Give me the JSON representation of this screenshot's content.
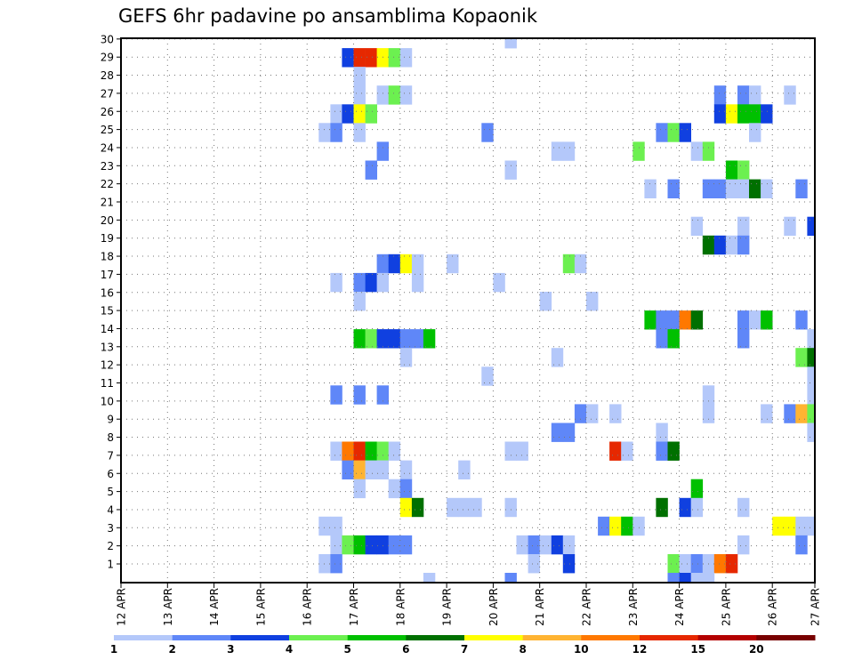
{
  "chart_data": {
    "type": "heatmap",
    "title": "GEFS 6hr padavine po ansamblima Kopaonik",
    "xlabel": "",
    "ylabel": "",
    "x_tick_labels": [
      "12 APR",
      "13 APR",
      "14 APR",
      "15 APR",
      "16 APR",
      "17 APR",
      "18 APR",
      "19 APR",
      "20 APR",
      "21 APR",
      "22 APR",
      "23 APR",
      "24 APR",
      "25 APR",
      "26 APR",
      "27 APR"
    ],
    "x_steps_per_day": 4,
    "x_total_steps": 60,
    "y_tick_labels": [
      "1",
      "2",
      "3",
      "4",
      "5",
      "6",
      "7",
      "8",
      "9",
      "10",
      "11",
      "12",
      "13",
      "14",
      "15",
      "16",
      "17",
      "18",
      "19",
      "20",
      "21",
      "22",
      "23",
      "24",
      "25",
      "26",
      "27",
      "28",
      "29",
      "30"
    ],
    "rows": 30,
    "grid": true,
    "colorbar": {
      "position": "bottom",
      "labels": [
        "1",
        "2",
        "3",
        "4",
        "5",
        "6",
        "7",
        "8",
        "10",
        "12",
        "15",
        "20"
      ],
      "bins": [
        1,
        2,
        3,
        4,
        5,
        6,
        7,
        8,
        10,
        12,
        15,
        20
      ],
      "colors": [
        "#b4c8fa",
        "#5f87f8",
        "#1040e0",
        "#6cf050",
        "#00c000",
        "#007000",
        "#ffff00",
        "#ffb432",
        "#ff7800",
        "#e62800",
        "#b40000",
        "#780000"
      ]
    },
    "cell_format": "[time_step_from_12APR00, row_from_top, precip_bin_lower_bound]",
    "cells": [
      [
        33,
        0,
        1
      ],
      [
        19,
        1,
        3
      ],
      [
        20,
        1,
        12
      ],
      [
        21,
        1,
        12
      ],
      [
        22,
        1,
        7
      ],
      [
        23,
        1,
        4
      ],
      [
        24,
        1,
        1
      ],
      [
        20,
        2,
        1
      ],
      [
        20,
        3,
        1
      ],
      [
        22,
        3,
        1
      ],
      [
        23,
        3,
        4
      ],
      [
        24,
        3,
        1
      ],
      [
        51,
        3,
        2
      ],
      [
        53,
        3,
        2
      ],
      [
        54,
        3,
        1
      ],
      [
        57,
        3,
        1
      ],
      [
        18,
        4,
        1
      ],
      [
        19,
        4,
        3
      ],
      [
        20,
        4,
        7
      ],
      [
        21,
        4,
        4
      ],
      [
        51,
        4,
        3
      ],
      [
        52,
        4,
        7
      ],
      [
        53,
        4,
        5
      ],
      [
        54,
        4,
        5
      ],
      [
        55,
        4,
        3
      ],
      [
        17,
        5,
        1
      ],
      [
        18,
        5,
        2
      ],
      [
        20,
        5,
        1
      ],
      [
        31,
        5,
        2
      ],
      [
        46,
        5,
        2
      ],
      [
        47,
        5,
        4
      ],
      [
        48,
        5,
        3
      ],
      [
        54,
        5,
        1
      ],
      [
        22,
        6,
        2
      ],
      [
        37,
        6,
        1
      ],
      [
        38,
        6,
        1
      ],
      [
        44,
        6,
        4
      ],
      [
        49,
        6,
        1
      ],
      [
        50,
        6,
        4
      ],
      [
        21,
        7,
        2
      ],
      [
        33,
        7,
        1
      ],
      [
        52,
        7,
        5
      ],
      [
        53,
        7,
        4
      ],
      [
        45,
        8,
        1
      ],
      [
        47,
        8,
        2
      ],
      [
        50,
        8,
        2
      ],
      [
        51,
        8,
        2
      ],
      [
        52,
        8,
        1
      ],
      [
        53,
        8,
        1
      ],
      [
        54,
        8,
        6
      ],
      [
        55,
        8,
        1
      ],
      [
        58,
        8,
        2
      ],
      [
        49,
        10,
        1
      ],
      [
        53,
        10,
        1
      ],
      [
        57,
        10,
        1
      ],
      [
        59,
        10,
        3
      ],
      [
        50,
        11,
        6
      ],
      [
        51,
        11,
        3
      ],
      [
        52,
        11,
        1
      ],
      [
        53,
        11,
        2
      ],
      [
        22,
        12,
        2
      ],
      [
        23,
        12,
        3
      ],
      [
        24,
        12,
        7
      ],
      [
        25,
        12,
        1
      ],
      [
        28,
        12,
        1
      ],
      [
        38,
        12,
        4
      ],
      [
        39,
        12,
        1
      ],
      [
        18,
        13,
        1
      ],
      [
        20,
        13,
        2
      ],
      [
        21,
        13,
        3
      ],
      [
        22,
        13,
        1
      ],
      [
        25,
        13,
        1
      ],
      [
        32,
        13,
        1
      ],
      [
        20,
        14,
        1
      ],
      [
        36,
        14,
        1
      ],
      [
        40,
        14,
        1
      ],
      [
        45,
        15,
        5
      ],
      [
        46,
        15,
        2
      ],
      [
        47,
        15,
        2
      ],
      [
        48,
        15,
        10
      ],
      [
        49,
        15,
        6
      ],
      [
        53,
        15,
        2
      ],
      [
        54,
        15,
        1
      ],
      [
        55,
        15,
        5
      ],
      [
        58,
        15,
        2
      ],
      [
        20,
        16,
        5
      ],
      [
        21,
        16,
        4
      ],
      [
        22,
        16,
        3
      ],
      [
        23,
        16,
        3
      ],
      [
        24,
        16,
        2
      ],
      [
        25,
        16,
        2
      ],
      [
        26,
        16,
        5
      ],
      [
        46,
        16,
        2
      ],
      [
        47,
        16,
        5
      ],
      [
        53,
        16,
        2
      ],
      [
        59,
        16,
        1
      ],
      [
        24,
        17,
        1
      ],
      [
        37,
        17,
        1
      ],
      [
        58,
        17,
        4
      ],
      [
        59,
        17,
        6
      ],
      [
        31,
        18,
        1
      ],
      [
        59,
        18,
        1
      ],
      [
        18,
        19,
        2
      ],
      [
        20,
        19,
        2
      ],
      [
        22,
        19,
        2
      ],
      [
        50,
        19,
        1
      ],
      [
        59,
        19,
        1
      ],
      [
        39,
        20,
        2
      ],
      [
        40,
        20,
        1
      ],
      [
        42,
        20,
        1
      ],
      [
        50,
        20,
        1
      ],
      [
        55,
        20,
        1
      ],
      [
        57,
        20,
        2
      ],
      [
        58,
        20,
        8
      ],
      [
        59,
        20,
        4
      ],
      [
        37,
        21,
        2
      ],
      [
        38,
        21,
        2
      ],
      [
        46,
        21,
        1
      ],
      [
        59,
        21,
        1
      ],
      [
        18,
        22,
        1
      ],
      [
        19,
        22,
        10
      ],
      [
        20,
        22,
        12
      ],
      [
        21,
        22,
        5
      ],
      [
        22,
        22,
        4
      ],
      [
        23,
        22,
        1
      ],
      [
        33,
        22,
        1
      ],
      [
        34,
        22,
        1
      ],
      [
        42,
        22,
        12
      ],
      [
        43,
        22,
        1
      ],
      [
        46,
        22,
        2
      ],
      [
        47,
        22,
        6
      ],
      [
        19,
        23,
        2
      ],
      [
        20,
        23,
        8
      ],
      [
        21,
        23,
        1
      ],
      [
        22,
        23,
        1
      ],
      [
        24,
        23,
        1
      ],
      [
        29,
        23,
        1
      ],
      [
        20,
        24,
        1
      ],
      [
        23,
        24,
        1
      ],
      [
        24,
        24,
        2
      ],
      [
        49,
        24,
        5
      ],
      [
        24,
        25,
        7
      ],
      [
        25,
        25,
        6
      ],
      [
        28,
        25,
        1
      ],
      [
        29,
        25,
        1
      ],
      [
        30,
        25,
        1
      ],
      [
        33,
        25,
        1
      ],
      [
        46,
        25,
        6
      ],
      [
        48,
        25,
        3
      ],
      [
        49,
        25,
        1
      ],
      [
        53,
        25,
        1
      ],
      [
        17,
        26,
        1
      ],
      [
        18,
        26,
        1
      ],
      [
        41,
        26,
        2
      ],
      [
        42,
        26,
        7
      ],
      [
        43,
        26,
        5
      ],
      [
        44,
        26,
        1
      ],
      [
        56,
        26,
        7
      ],
      [
        57,
        26,
        7
      ],
      [
        58,
        26,
        1
      ],
      [
        59,
        26,
        1
      ],
      [
        18,
        27,
        1
      ],
      [
        19,
        27,
        4
      ],
      [
        20,
        27,
        5
      ],
      [
        21,
        27,
        3
      ],
      [
        22,
        27,
        3
      ],
      [
        23,
        27,
        2
      ],
      [
        24,
        27,
        2
      ],
      [
        34,
        27,
        1
      ],
      [
        35,
        27,
        2
      ],
      [
        36,
        27,
        1
      ],
      [
        37,
        27,
        3
      ],
      [
        38,
        27,
        1
      ],
      [
        53,
        27,
        1
      ],
      [
        58,
        27,
        2
      ],
      [
        17,
        28,
        1
      ],
      [
        18,
        28,
        2
      ],
      [
        35,
        28,
        1
      ],
      [
        38,
        28,
        3
      ],
      [
        47,
        28,
        4
      ],
      [
        48,
        28,
        1
      ],
      [
        49,
        28,
        2
      ],
      [
        50,
        28,
        1
      ],
      [
        51,
        28,
        10
      ],
      [
        52,
        28,
        12
      ],
      [
        26,
        29,
        1
      ],
      [
        33,
        29,
        2
      ],
      [
        47,
        29,
        2
      ],
      [
        48,
        29,
        3
      ],
      [
        49,
        29,
        1
      ],
      [
        50,
        29,
        1
      ]
    ]
  }
}
